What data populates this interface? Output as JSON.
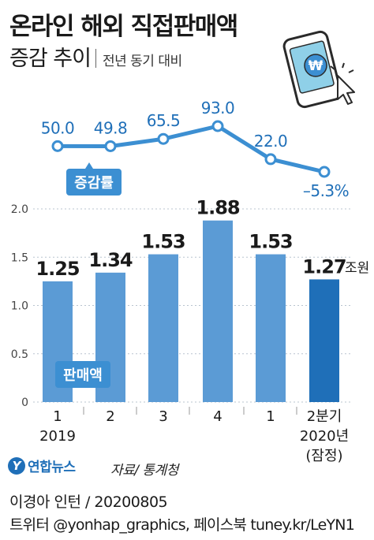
{
  "title": "온라인 해외 직접판매액",
  "subtitle": "증감 추이",
  "subtitle_note": "전년 동기 대비",
  "rate_label": "증감률",
  "sales_label": "판매액",
  "unit": "조원",
  "source": "자료/ 통계청",
  "credit": "이경아 인턴 / 20200805",
  "credit_line2": "트위터 @yonhap_graphics, 페이스북 tuney.kr/LeYN1",
  "logo_text": "연합뉴스",
  "colors": {
    "line": "#3c8fd2",
    "bar": "#5b9bd5",
    "bar_highlight": "#1f6fb8",
    "label_box": "#3c8fd2"
  },
  "chart_data": {
    "type": "bar",
    "categories": [
      "1",
      "2",
      "3",
      "4",
      "1",
      "2분기"
    ],
    "year_labels": [
      "2019",
      "",
      "",
      "",
      "",
      "2020년"
    ],
    "extra_label": "(잠정)",
    "ylim": [
      0,
      2.0
    ],
    "y_ticks": [
      "0",
      "0.5",
      "1.0",
      "1.5",
      "2.0"
    ],
    "series": [
      {
        "name": "판매액",
        "values": [
          1.25,
          1.34,
          1.53,
          1.88,
          1.53,
          1.27
        ],
        "labels": [
          "1.25",
          "1.34",
          "1.53",
          "1.88",
          "1.53",
          "1.27"
        ]
      },
      {
        "name": "증감률",
        "values": [
          50.0,
          49.8,
          65.5,
          93.0,
          22.0,
          -5.3
        ],
        "labels": [
          "50.0",
          "49.8",
          "65.5",
          "93.0",
          "22.0",
          "–5.3%"
        ]
      }
    ]
  }
}
